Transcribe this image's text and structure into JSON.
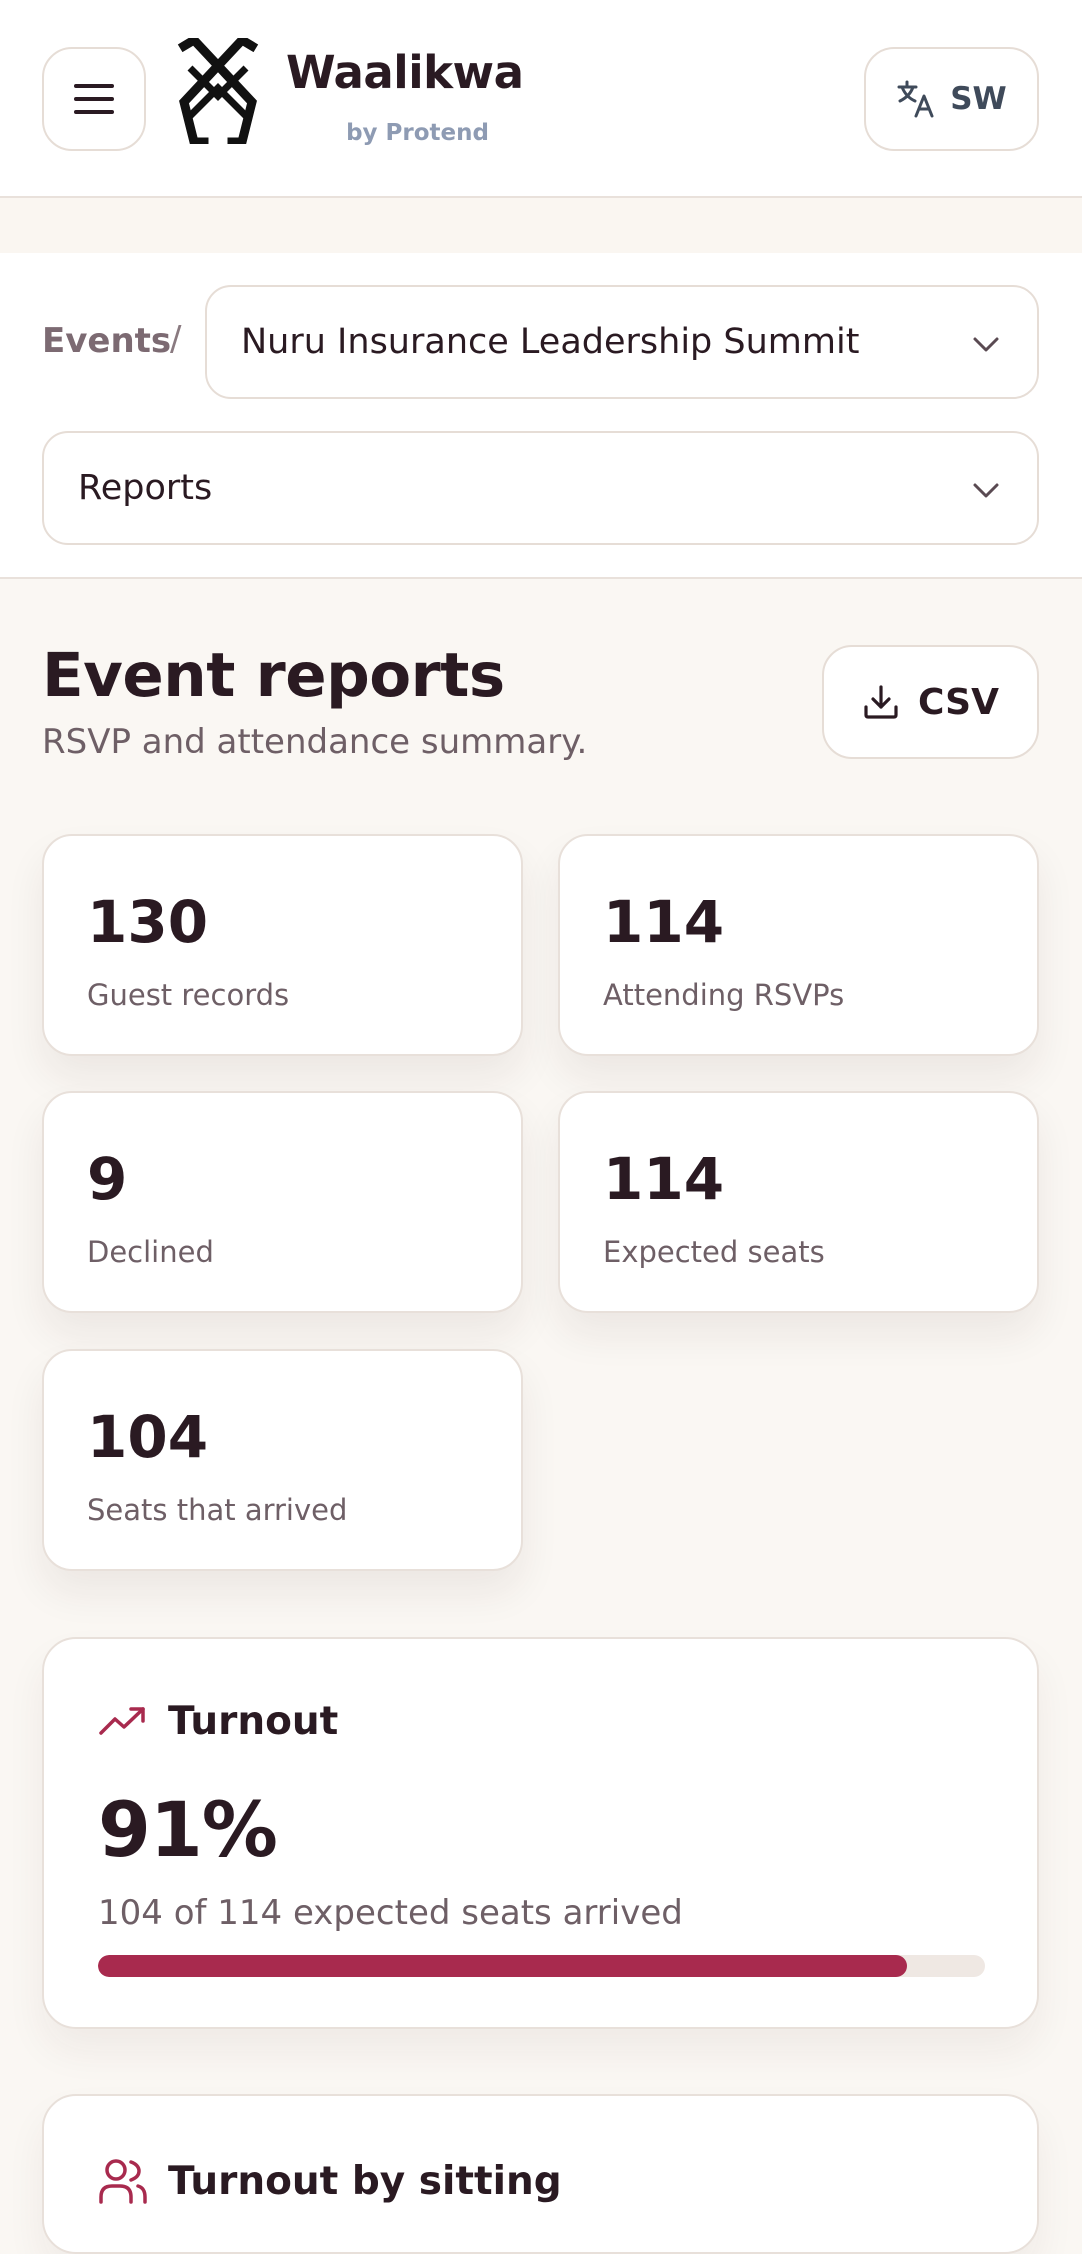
{
  "header": {
    "brand_name": "Waalikwa",
    "brand_sub": "by Protend",
    "language_code": "SW",
    "icons": {
      "menu": "hamburger-icon",
      "logo": "waalikwa-logo",
      "language": "translate-icon"
    }
  },
  "nav": {
    "breadcrumb_root": "Events",
    "breadcrumb_separator": "/",
    "event_selected": "Nuru Insurance Leadership Summit",
    "section_selected": "Reports"
  },
  "main": {
    "title": "Event reports",
    "subtitle": "RSVP and attendance summary.",
    "export_label": "CSV",
    "stats": [
      {
        "value": "130",
        "label": "Guest records"
      },
      {
        "value": "114",
        "label": "Attending RSVPs"
      },
      {
        "value": "9",
        "label": "Declined"
      },
      {
        "value": "114",
        "label": "Expected seats"
      },
      {
        "value": "104",
        "label": "Seats that arrived"
      }
    ],
    "turnout": {
      "title": "Turnout",
      "percent_label": "91%",
      "detail": "104 of 114 expected seats arrived",
      "progress_fraction": 0.912
    },
    "sitting": {
      "title": "Turnout by sitting"
    }
  },
  "colors": {
    "accent": "#a82a4e",
    "text": "#2a1a22",
    "muted": "#6e5f66",
    "background": "#faf7f3"
  }
}
